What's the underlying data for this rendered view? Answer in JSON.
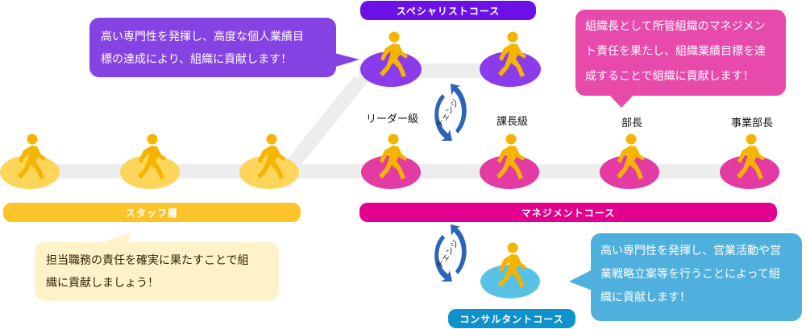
{
  "courses": {
    "staff": "スタッフ層",
    "management": "マネジメントコース",
    "specialist": "スペシャリストコース",
    "consultant": "コンサルタントコース"
  },
  "levels": {
    "leader": "リーダー級",
    "section_chief": "課長級",
    "department_head": "部長",
    "division_head": "事業部長"
  },
  "change_label": "チェンジ",
  "bubbles": {
    "specialist": [
      "高い専門性を発揮し、高度な個人業績目",
      "標の達成により、組織に貢献します！"
    ],
    "management": [
      "組織長として所管組織のマネジメン",
      "ト責任を果たし、組織業績目標を達",
      "成することで組織に貢献します！"
    ],
    "staff": [
      "担当職務の責任を確実に果たすことで組",
      "織に貢献しましょう！"
    ],
    "consultant": [
      "高い専門性を発揮し、営業活動や営",
      "業戦略立案等を行うことによって組",
      "織に貢献します！"
    ]
  },
  "colors": {
    "staff": "#fbc52a",
    "management": "#e2018f",
    "specialist": "#6b11e5",
    "consultant": "#0f92cc",
    "figure": "#f5b400",
    "path": "#ededed"
  }
}
